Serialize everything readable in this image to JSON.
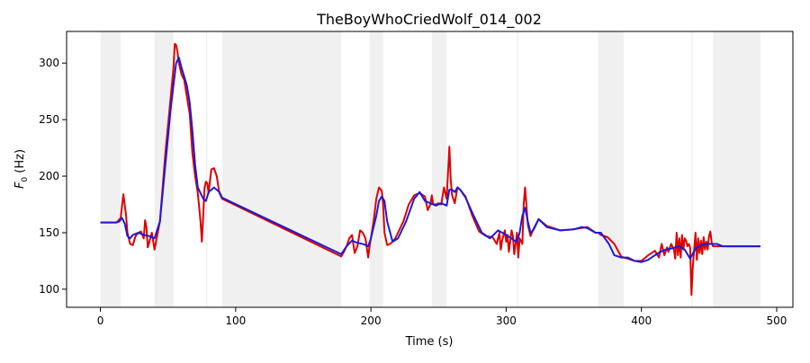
{
  "chart_data": {
    "type": "line",
    "title": "TheBoyWhoCriedWolf_014_002",
    "xlabel": "Time (s)",
    "ylabel_base": "F",
    "ylabel_sub": "0",
    "ylabel_unit": " (Hz)",
    "xlim": [
      -25,
      512
    ],
    "ylim": [
      84,
      328
    ],
    "xticks": [
      0,
      100,
      200,
      300,
      400,
      500
    ],
    "yticks": [
      100,
      150,
      200,
      250,
      300
    ],
    "grid": false,
    "legend": "none",
    "shaded_regions": [
      [
        0,
        15
      ],
      [
        40,
        54
      ],
      [
        78,
        79
      ],
      [
        90,
        178
      ],
      [
        199,
        209
      ],
      [
        245,
        256
      ],
      [
        308,
        309
      ],
      [
        368,
        387
      ],
      [
        437,
        438
      ],
      [
        453,
        488
      ]
    ],
    "series": [
      {
        "color": "#dd0000",
        "x": [
          0,
          12,
          15,
          17,
          19,
          20,
          22,
          24,
          26,
          28,
          30,
          32,
          33,
          34,
          35,
          36,
          38,
          40,
          44,
          48,
          52,
          54,
          55,
          56,
          57,
          58,
          60,
          62,
          64,
          66,
          68,
          70,
          72,
          74,
          75,
          76,
          77,
          78,
          79,
          80,
          82,
          84,
          86,
          88,
          90,
          178,
          180,
          182,
          184,
          186,
          188,
          190,
          192,
          194,
          196,
          198,
          199,
          200,
          202,
          204,
          206,
          208,
          209,
          210,
          212,
          214,
          216,
          218,
          220,
          224,
          228,
          232,
          236,
          240,
          242,
          244,
          245,
          246,
          248,
          250,
          252,
          254,
          256,
          258,
          259,
          260,
          262,
          264,
          266,
          270,
          275,
          280,
          285,
          290,
          293,
          295,
          296,
          297,
          299,
          300,
          301,
          302,
          304,
          305,
          306,
          307,
          308,
          309,
          310,
          312,
          313,
          314,
          316,
          318,
          320,
          324,
          330,
          340,
          350,
          360,
          366,
          368,
          370,
          375,
          380,
          385,
          387,
          390,
          395,
          400,
          405,
          410,
          413,
          415,
          417,
          419,
          420,
          422,
          424,
          425,
          426,
          427,
          428,
          429,
          430,
          431,
          432,
          433,
          434,
          435,
          436,
          437,
          438,
          440,
          441,
          442,
          443,
          444,
          445,
          446,
          447,
          448,
          449,
          450,
          451,
          452,
          453,
          455,
          460,
          470,
          480,
          488
        ],
        "y": [
          159,
          159,
          163,
          184,
          165,
          150,
          140,
          139,
          147,
          150,
          151,
          145,
          161,
          155,
          137,
          141,
          150,
          135,
          160,
          220,
          270,
          295,
          317,
          316,
          310,
          300,
          290,
          285,
          270,
          255,
          220,
          200,
          185,
          160,
          142,
          165,
          190,
          195,
          194,
          185,
          206,
          207,
          200,
          185,
          180,
          129,
          133,
          138,
          145,
          148,
          132,
          138,
          152,
          150,
          145,
          128,
          138,
          145,
          160,
          180,
          190,
          187,
          175,
          150,
          139,
          140,
          142,
          145,
          150,
          160,
          175,
          183,
          185,
          182,
          170,
          175,
          183,
          175,
          175,
          176,
          175,
          190,
          180,
          226,
          197,
          183,
          176,
          190,
          188,
          182,
          165,
          151,
          147,
          146,
          140,
          150,
          135,
          143,
          152,
          142,
          148,
          133,
          152,
          147,
          131,
          140,
          150,
          128,
          145,
          140,
          175,
          190,
          157,
          147,
          153,
          162,
          156,
          152,
          153,
          155,
          150,
          150,
          148,
          146,
          140,
          129,
          128,
          127,
          125,
          125,
          130,
          134,
          128,
          140,
          130,
          137,
          133,
          140,
          135,
          127,
          150,
          130,
          145,
          128,
          148,
          135,
          145,
          143,
          138,
          140,
          137,
          95,
          120,
          150,
          126,
          145,
          132,
          143,
          131,
          146,
          135,
          142,
          135,
          147,
          151,
          141,
          138,
          138,
          138,
          138,
          138,
          138
        ]
      },
      {
        "color": "#1a1adc",
        "x": [
          0,
          12,
          14,
          16,
          18,
          20,
          22,
          24,
          28,
          32,
          36,
          40,
          44,
          48,
          52,
          56,
          58,
          60,
          62,
          64,
          66,
          68,
          70,
          72,
          74,
          76,
          78,
          80,
          84,
          88,
          90,
          178,
          182,
          186,
          190,
          194,
          198,
          200,
          204,
          206,
          208,
          210,
          212,
          216,
          220,
          226,
          232,
          236,
          240,
          244,
          248,
          252,
          256,
          258,
          260,
          262,
          264,
          266,
          270,
          276,
          282,
          288,
          294,
          300,
          304,
          306,
          308,
          310,
          312,
          314,
          316,
          318,
          320,
          324,
          330,
          340,
          350,
          356,
          360,
          366,
          370,
          376,
          380,
          385,
          390,
          395,
          400,
          405,
          410,
          414,
          418,
          422,
          428,
          432,
          436,
          440,
          444,
          448,
          452,
          456,
          460,
          470,
          480,
          488
        ],
        "y": [
          159,
          159,
          160,
          163,
          158,
          147,
          145,
          148,
          150,
          148,
          147,
          145,
          160,
          210,
          260,
          300,
          305,
          296,
          288,
          280,
          265,
          240,
          210,
          190,
          185,
          180,
          178,
          186,
          190,
          186,
          181,
          131,
          138,
          143,
          141,
          140,
          138,
          145,
          165,
          178,
          182,
          178,
          160,
          142,
          145,
          160,
          180,
          186,
          178,
          176,
          174,
          176,
          174,
          188,
          188,
          186,
          190,
          188,
          181,
          165,
          150,
          145,
          152,
          148,
          145,
          143,
          142,
          150,
          165,
          172,
          160,
          150,
          152,
          162,
          155,
          152,
          153,
          155,
          154,
          150,
          150,
          140,
          130,
          128,
          128,
          125,
          124,
          126,
          130,
          133,
          135,
          136,
          138,
          135,
          127,
          136,
          139,
          140,
          140,
          140,
          138,
          138,
          138,
          138
        ]
      }
    ]
  }
}
